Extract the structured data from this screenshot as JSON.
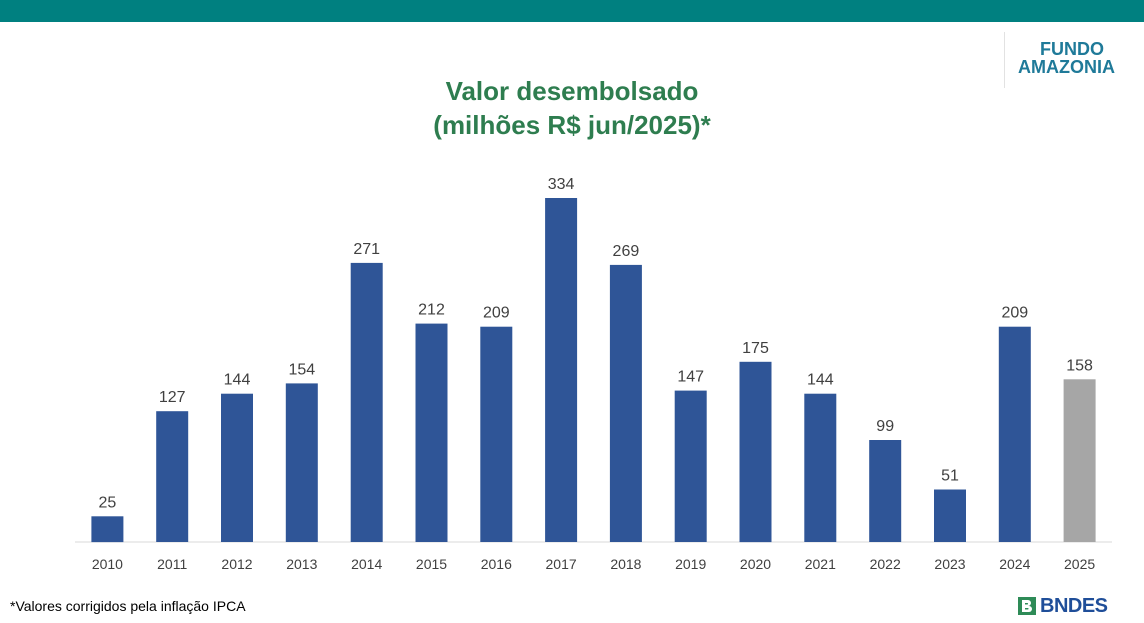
{
  "header": {
    "bar_color": "#008080"
  },
  "logo": {
    "line1": "FUNDO",
    "line2": "AMAZONIA"
  },
  "title": {
    "line1": "Valor desembolsado",
    "line2": "(milhões R$ jun/2025)*"
  },
  "footnote": "*Valores corrigidos pela inflação IPCA",
  "bndes_logo": {
    "text": "BNDES",
    "icon": "bndes-logo-icon"
  },
  "chart_data": {
    "type": "bar",
    "categories": [
      "2010",
      "2011",
      "2012",
      "2013",
      "2014",
      "2015",
      "2016",
      "2017",
      "2018",
      "2019",
      "2020",
      "2021",
      "2022",
      "2023",
      "2024",
      "2025"
    ],
    "values": [
      25,
      127,
      144,
      154,
      271,
      212,
      209,
      334,
      269,
      147,
      175,
      144,
      99,
      51,
      209,
      158
    ],
    "colors": {
      "default": "#2f5597",
      "highlight": "#a6a6a6"
    },
    "highlight_categories": [
      "2025"
    ],
    "ylim": [
      0,
      350
    ],
    "grid": false,
    "legend": "none",
    "xlabel": "",
    "ylabel": ""
  }
}
